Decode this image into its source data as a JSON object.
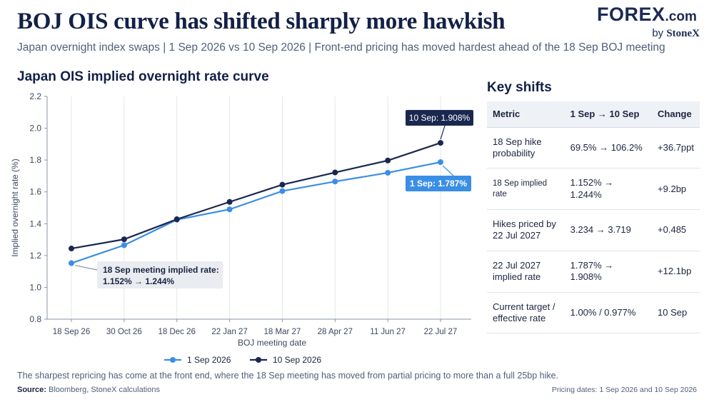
{
  "header": {
    "title": "BOJ OIS curve has shifted sharply more hawkish",
    "subtitle": "Japan overnight index swaps | 1 Sep 2026 vs 10 Sep 2026 | Front-end pricing has moved hardest ahead of the 18 Sep BOJ meeting"
  },
  "brand": {
    "name": "FOREX",
    "suffix": ".com",
    "by_label": "by",
    "by_name": "StoneX"
  },
  "chart_data": {
    "type": "line",
    "title": "Japan OIS implied overnight rate curve",
    "xlabel": "BOJ meeting date",
    "ylabel": "Implied overnight rate (%)",
    "categories": [
      "18 Sep 26",
      "30 Oct 26",
      "18 Dec 26",
      "22 Jan 27",
      "18 Mar 27",
      "28 Apr 27",
      "11 Jun 27",
      "22 Jul 27"
    ],
    "series": [
      {
        "name": "1 Sep 2026",
        "color": "#3a8ee6",
        "values": [
          1.152,
          1.265,
          1.425,
          1.49,
          1.605,
          1.665,
          1.72,
          1.787
        ]
      },
      {
        "name": "10 Sep 2026",
        "color": "#1a2850",
        "values": [
          1.244,
          1.302,
          1.428,
          1.537,
          1.645,
          1.722,
          1.797,
          1.908
        ]
      }
    ],
    "ylim": [
      0.8,
      2.2
    ],
    "yticks": [
      "0.8",
      "1.0",
      "1.2",
      "1.4",
      "1.6",
      "1.8",
      "2.0",
      "2.2"
    ],
    "grid": "vertical",
    "legend": "bottom-center",
    "annotations": {
      "end_label_10sep": "10 Sep: 1.908%",
      "end_label_1sep": "1 Sep: 1.787%",
      "front_line1": "18 Sep meeting implied rate:",
      "front_line2": "1.152% → 1.244%"
    }
  },
  "shifts": {
    "title": "Key shifts",
    "headers": [
      "Metric",
      "1 Sep → 10 Sep",
      "Change"
    ],
    "rows": [
      {
        "metric": "18 Sep hike probability",
        "values": "69.5% → 106.2%",
        "change": "+36.7ppt"
      },
      {
        "metric": "18 Sep implied rate",
        "values": "1.152% → 1.244%",
        "change": "+9.2bp"
      },
      {
        "metric": "Hikes priced by 22 Jul 2027",
        "values": "3.234 → 3.719",
        "change": "+0.485"
      },
      {
        "metric": "22 Jul 2027 implied rate",
        "values": "1.787% → 1.908%",
        "change": "+12.1bp"
      },
      {
        "metric": "Current target / effective rate",
        "values": "1.00% / 0.977%",
        "change": "10 Sep"
      }
    ]
  },
  "footer": {
    "note": "The sharpest repricing has come at the front end, where the 18 Sep meeting has moved from partial pricing to more than a full 25bp hike.",
    "source_label": "Source:",
    "source_text": "Bloomberg, StoneX calculations",
    "pricing_dates": "Pricing dates: 1 Sep 2026 and 10 Sep 2026"
  }
}
